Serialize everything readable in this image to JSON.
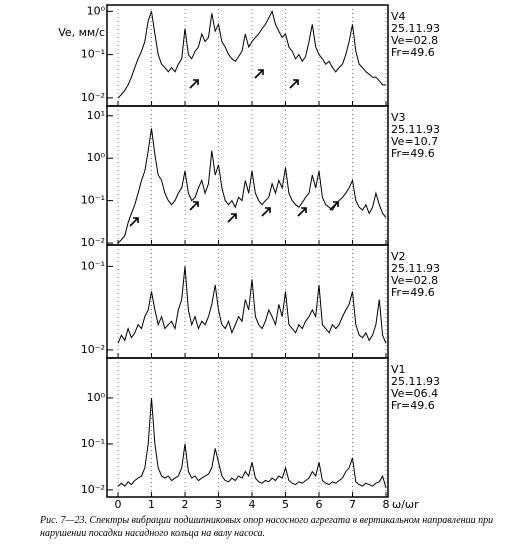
{
  "caption": "Рис. 7—23. Спектры вибрации подшипниковых опор насосного агрегата в вертикальном направлении при нарушении посадки насадного кольца на валу насоса.",
  "chart_data": [
    {
      "type": "line",
      "ylabel": "Ve, мм/с",
      "annotations": [
        "V4",
        "25.11.93",
        "Ve=02.8",
        "Fr=49.6"
      ],
      "log_y": true,
      "grid": true,
      "color": "#000000",
      "xlim": [
        -0.33,
        8.06
      ],
      "xticks": [
        0,
        1,
        2,
        3,
        4,
        5,
        6,
        7,
        8
      ],
      "ylim": [
        0.0065,
        1.4
      ],
      "yticks": [
        {
          "value": 1,
          "label": "10⁰"
        },
        {
          "value": 0.1,
          "label": "10⁻¹"
        },
        {
          "value": 0.01,
          "label": "10⁻²"
        }
      ],
      "x": [
        0,
        0.1,
        0.2,
        0.3,
        0.4,
        0.5,
        0.6,
        0.7,
        0.8,
        0.9,
        1,
        1.1,
        1.2,
        1.3,
        1.4,
        1.5,
        1.6,
        1.7,
        1.8,
        1.9,
        2,
        2.1,
        2.2,
        2.3,
        2.4,
        2.5,
        2.6,
        2.7,
        2.8,
        2.9,
        3,
        3.1,
        3.2,
        3.3,
        3.4,
        3.5,
        3.6,
        3.7,
        3.8,
        3.9,
        4,
        4.1,
        4.2,
        4.3,
        4.4,
        4.5,
        4.6,
        4.7,
        4.8,
        4.9,
        5,
        5.1,
        5.2,
        5.3,
        5.4,
        5.5,
        5.6,
        5.7,
        5.8,
        5.9,
        6,
        6.1,
        6.2,
        6.3,
        6.4,
        6.5,
        6.6,
        6.7,
        6.8,
        6.9,
        7,
        7.1,
        7.2,
        7.3,
        7.4,
        7.5,
        7.6,
        7.7,
        7.8,
        7.9,
        8
      ],
      "values": [
        0.01,
        0.012,
        0.015,
        0.02,
        0.03,
        0.05,
        0.08,
        0.12,
        0.2,
        0.6,
        1.0,
        0.3,
        0.1,
        0.06,
        0.05,
        0.04,
        0.05,
        0.04,
        0.06,
        0.08,
        0.4,
        0.1,
        0.08,
        0.12,
        0.15,
        0.3,
        0.2,
        0.25,
        0.9,
        0.35,
        0.5,
        0.2,
        0.15,
        0.1,
        0.08,
        0.07,
        0.09,
        0.12,
        0.3,
        0.15,
        0.2,
        0.25,
        0.3,
        0.4,
        0.5,
        0.7,
        1.0,
        0.5,
        0.35,
        0.25,
        0.3,
        0.15,
        0.12,
        0.08,
        0.1,
        0.07,
        0.09,
        0.2,
        0.5,
        0.15,
        0.1,
        0.08,
        0.06,
        0.07,
        0.05,
        0.04,
        0.05,
        0.06,
        0.1,
        0.2,
        0.5,
        0.12,
        0.06,
        0.05,
        0.04,
        0.035,
        0.03,
        0.03,
        0.025,
        0.02,
        0.02
      ]
    },
    {
      "type": "line",
      "annotations": [
        "V3",
        "25.11.93",
        "Ve=10.7",
        "Fr=49.6"
      ],
      "log_y": true,
      "grid": true,
      "color": "#000000",
      "xlim": [
        -0.33,
        8.06
      ],
      "xticks": [
        0,
        1,
        2,
        3,
        4,
        5,
        6,
        7,
        8
      ],
      "ylim": [
        0.009,
        17
      ],
      "yticks": [
        {
          "value": 10,
          "label": "10¹"
        },
        {
          "value": 1,
          "label": "10⁰"
        },
        {
          "value": 0.1,
          "label": "10⁻¹"
        },
        {
          "value": 0.01,
          "label": "10⁻²"
        }
      ],
      "x": [
        0,
        0.1,
        0.2,
        0.3,
        0.4,
        0.5,
        0.6,
        0.7,
        0.8,
        0.9,
        1,
        1.1,
        1.2,
        1.3,
        1.4,
        1.5,
        1.6,
        1.7,
        1.8,
        1.9,
        2,
        2.1,
        2.2,
        2.3,
        2.4,
        2.5,
        2.6,
        2.7,
        2.8,
        2.9,
        3,
        3.1,
        3.2,
        3.3,
        3.4,
        3.5,
        3.6,
        3.7,
        3.8,
        3.9,
        4,
        4.1,
        4.2,
        4.3,
        4.4,
        4.5,
        4.6,
        4.7,
        4.8,
        4.9,
        5,
        5.1,
        5.2,
        5.3,
        5.4,
        5.5,
        5.6,
        5.7,
        5.8,
        5.9,
        6,
        6.1,
        6.2,
        6.3,
        6.4,
        6.5,
        6.6,
        6.7,
        6.8,
        6.9,
        7,
        7.1,
        7.2,
        7.3,
        7.4,
        7.5,
        7.6,
        7.7,
        7.8,
        7.9,
        8
      ],
      "values": [
        0.01,
        0.012,
        0.015,
        0.03,
        0.05,
        0.08,
        0.15,
        0.3,
        0.5,
        1.5,
        5,
        1.2,
        0.4,
        0.3,
        0.15,
        0.1,
        0.08,
        0.1,
        0.15,
        0.2,
        0.5,
        0.15,
        0.1,
        0.12,
        0.2,
        0.3,
        0.15,
        0.25,
        1.5,
        0.4,
        0.7,
        0.2,
        0.1,
        0.08,
        0.1,
        0.07,
        0.12,
        0.1,
        0.3,
        0.15,
        0.5,
        0.15,
        0.1,
        0.08,
        0.1,
        0.12,
        0.25,
        0.15,
        0.3,
        0.2,
        0.6,
        0.15,
        0.1,
        0.08,
        0.07,
        0.09,
        0.12,
        0.15,
        0.4,
        0.2,
        0.5,
        0.12,
        0.08,
        0.07,
        0.06,
        0.08,
        0.1,
        0.12,
        0.15,
        0.2,
        0.3,
        0.1,
        0.07,
        0.06,
        0.08,
        0.05,
        0.07,
        0.15,
        0.08,
        0.05,
        0.04
      ]
    },
    {
      "type": "line",
      "annotations": [
        "V2",
        "25.11.93",
        "Ve=02.8",
        "Fr=49.6"
      ],
      "log_y": true,
      "grid": true,
      "color": "#000000",
      "xlim": [
        -0.33,
        8.06
      ],
      "xticks": [
        0,
        1,
        2,
        3,
        4,
        5,
        6,
        7,
        8
      ],
      "ylim": [
        0.008,
        0.18
      ],
      "yticks": [
        {
          "value": 0.1,
          "label": "10⁻¹"
        },
        {
          "value": 0.01,
          "label": "10⁻²"
        }
      ],
      "x": [
        0,
        0.1,
        0.2,
        0.3,
        0.4,
        0.5,
        0.6,
        0.7,
        0.8,
        0.9,
        1,
        1.1,
        1.2,
        1.3,
        1.4,
        1.5,
        1.6,
        1.7,
        1.8,
        1.9,
        2,
        2.1,
        2.2,
        2.3,
        2.4,
        2.5,
        2.6,
        2.7,
        2.8,
        2.9,
        3,
        3.1,
        3.2,
        3.3,
        3.4,
        3.5,
        3.6,
        3.7,
        3.8,
        3.9,
        4,
        4.1,
        4.2,
        4.3,
        4.4,
        4.5,
        4.6,
        4.7,
        4.8,
        4.9,
        5,
        5.1,
        5.2,
        5.3,
        5.4,
        5.5,
        5.6,
        5.7,
        5.8,
        5.9,
        6,
        6.1,
        6.2,
        6.3,
        6.4,
        6.5,
        6.6,
        6.7,
        6.8,
        6.9,
        7,
        7.1,
        7.2,
        7.3,
        7.4,
        7.5,
        7.6,
        7.7,
        7.8,
        7.9,
        8
      ],
      "values": [
        0.012,
        0.015,
        0.013,
        0.018,
        0.014,
        0.016,
        0.02,
        0.018,
        0.025,
        0.03,
        0.05,
        0.03,
        0.02,
        0.025,
        0.018,
        0.02,
        0.022,
        0.018,
        0.03,
        0.04,
        0.1,
        0.03,
        0.02,
        0.025,
        0.018,
        0.022,
        0.02,
        0.025,
        0.035,
        0.06,
        0.03,
        0.02,
        0.018,
        0.022,
        0.016,
        0.02,
        0.025,
        0.022,
        0.04,
        0.03,
        0.07,
        0.025,
        0.02,
        0.018,
        0.022,
        0.03,
        0.025,
        0.02,
        0.035,
        0.025,
        0.05,
        0.02,
        0.018,
        0.016,
        0.02,
        0.018,
        0.022,
        0.025,
        0.03,
        0.025,
        0.06,
        0.02,
        0.018,
        0.016,
        0.02,
        0.018,
        0.02,
        0.025,
        0.03,
        0.035,
        0.05,
        0.02,
        0.015,
        0.014,
        0.016,
        0.013,
        0.015,
        0.02,
        0.04,
        0.015,
        0.012
      ]
    },
    {
      "type": "line",
      "annotations": [
        "V1",
        "25.11.93",
        "Ve=06.4",
        "Fr=49.6"
      ],
      "log_y": true,
      "grid": true,
      "color": "#000000",
      "xlabel": "ω/ωr",
      "xlim": [
        -0.33,
        8.06
      ],
      "xticks": [
        0,
        1,
        2,
        3,
        4,
        5,
        6,
        7,
        8
      ],
      "ylim": [
        0.007,
        7.4
      ],
      "yticks": [
        {
          "value": 1,
          "label": "10⁰"
        },
        {
          "value": 0.1,
          "label": "10⁻¹"
        },
        {
          "value": 0.01,
          "label": "10⁻²"
        }
      ],
      "x": [
        0,
        0.1,
        0.2,
        0.3,
        0.4,
        0.5,
        0.6,
        0.7,
        0.8,
        0.9,
        1,
        1.1,
        1.2,
        1.3,
        1.4,
        1.5,
        1.6,
        1.7,
        1.8,
        1.9,
        2,
        2.1,
        2.2,
        2.3,
        2.4,
        2.5,
        2.6,
        2.7,
        2.8,
        2.9,
        3,
        3.1,
        3.2,
        3.3,
        3.4,
        3.5,
        3.6,
        3.7,
        3.8,
        3.9,
        4,
        4.1,
        4.2,
        4.3,
        4.4,
        4.5,
        4.6,
        4.7,
        4.8,
        4.9,
        5,
        5.1,
        5.2,
        5.3,
        5.4,
        5.5,
        5.6,
        5.7,
        5.8,
        5.9,
        6,
        6.1,
        6.2,
        6.3,
        6.4,
        6.5,
        6.6,
        6.7,
        6.8,
        6.9,
        7,
        7.1,
        7.2,
        7.3,
        7.4,
        7.5,
        7.6,
        7.7,
        7.8,
        7.9,
        8
      ],
      "values": [
        0.012,
        0.014,
        0.012,
        0.015,
        0.013,
        0.016,
        0.018,
        0.02,
        0.03,
        0.1,
        1.0,
        0.1,
        0.03,
        0.02,
        0.018,
        0.02,
        0.016,
        0.018,
        0.02,
        0.03,
        0.1,
        0.025,
        0.018,
        0.02,
        0.016,
        0.018,
        0.02,
        0.022,
        0.03,
        0.08,
        0.04,
        0.02,
        0.016,
        0.015,
        0.018,
        0.016,
        0.02,
        0.018,
        0.025,
        0.02,
        0.04,
        0.018,
        0.015,
        0.014,
        0.016,
        0.015,
        0.018,
        0.016,
        0.02,
        0.018,
        0.03,
        0.016,
        0.014,
        0.013,
        0.015,
        0.014,
        0.016,
        0.018,
        0.025,
        0.02,
        0.04,
        0.016,
        0.014,
        0.013,
        0.015,
        0.014,
        0.016,
        0.018,
        0.025,
        0.03,
        0.05,
        0.015,
        0.013,
        0.012,
        0.014,
        0.013,
        0.012,
        0.014,
        0.015,
        0.02,
        0.011
      ]
    }
  ]
}
